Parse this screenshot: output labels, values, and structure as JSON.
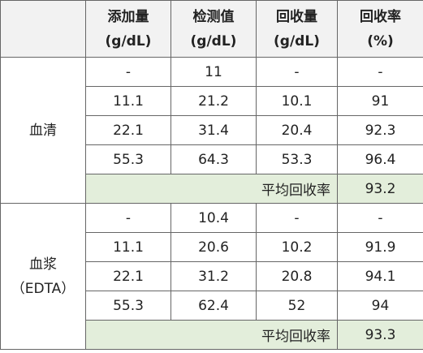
{
  "header": [
    {
      "line1": "添加量",
      "line2": "(g/dL)"
    },
    {
      "line1": "检测值",
      "line2": "(g/dL)"
    },
    {
      "line1": "回收量",
      "line2": "(g/dL)"
    },
    {
      "line1": "回收率",
      "line2": "(%)"
    }
  ],
  "groups": [
    {
      "label_lines": [
        "血清"
      ],
      "rows": [
        [
          "-",
          11,
          "-",
          "-"
        ],
        [
          11.1,
          21.2,
          10.1,
          91
        ],
        [
          22.1,
          31.4,
          20.4,
          92.3
        ],
        [
          55.3,
          64.3,
          53.3,
          96.4
        ]
      ],
      "average_label": "平均回收率",
      "average": 93.2
    },
    {
      "label_lines": [
        "血浆",
        "（EDTA）"
      ],
      "rows": [
        [
          "-",
          10.4,
          "-",
          "-"
        ],
        [
          11.1,
          20.6,
          10.2,
          91.9
        ],
        [
          22.1,
          31.2,
          20.8,
          94.1
        ],
        [
          55.3,
          62.4,
          52,
          94
        ]
      ],
      "average_label": "平均回收率",
      "average": 93.3
    }
  ]
}
